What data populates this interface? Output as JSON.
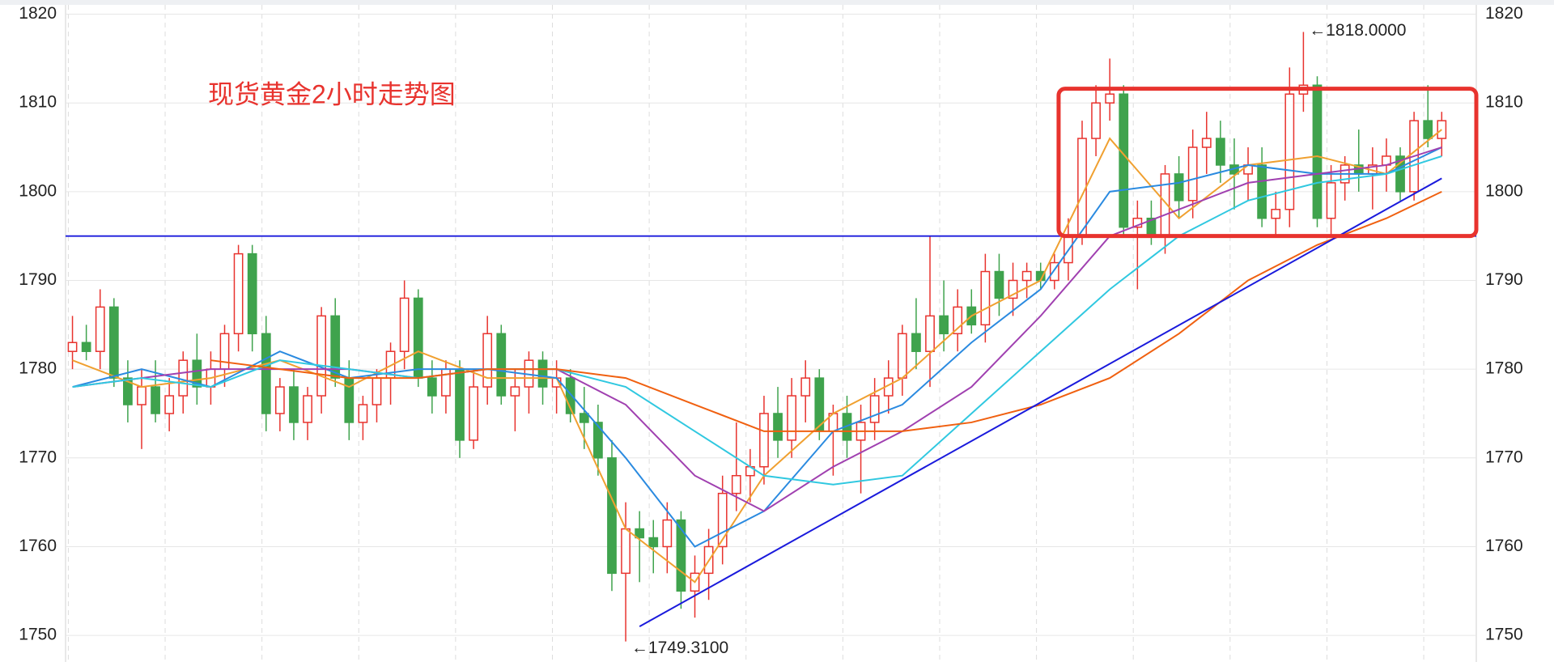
{
  "chart_data": {
    "type": "candlestick",
    "title": "现货黄金2小时走势图",
    "ylim": [
      1747,
      1821.6
    ],
    "xlim": [
      -0.5,
      101.5
    ],
    "yticks": [
      1750,
      1760,
      1770,
      1780,
      1790,
      1800,
      1810,
      1820
    ],
    "grid": true,
    "up_color": "#e8332e",
    "down_color": "#3fa34d",
    "ohlc": [
      [
        1782,
        1786,
        1780,
        1783
      ],
      [
        1783,
        1785,
        1781,
        1782
      ],
      [
        1782,
        1789,
        1780,
        1787
      ],
      [
        1787,
        1788,
        1778,
        1779
      ],
      [
        1779,
        1781,
        1774,
        1776
      ],
      [
        1776,
        1780,
        1771,
        1778
      ],
      [
        1778,
        1781,
        1774,
        1775
      ],
      [
        1775,
        1779,
        1773,
        1777
      ],
      [
        1777,
        1782,
        1775,
        1781
      ],
      [
        1781,
        1784,
        1776,
        1778
      ],
      [
        1778,
        1782,
        1776,
        1780
      ],
      [
        1780,
        1785,
        1778,
        1784
      ],
      [
        1784,
        1794,
        1782,
        1793
      ],
      [
        1793,
        1794,
        1782,
        1784
      ],
      [
        1784,
        1786,
        1773,
        1775
      ],
      [
        1775,
        1779,
        1773,
        1778
      ],
      [
        1778,
        1780,
        1772,
        1774
      ],
      [
        1774,
        1778,
        1772,
        1777
      ],
      [
        1777,
        1787,
        1775,
        1786
      ],
      [
        1786,
        1788,
        1778,
        1779
      ],
      [
        1779,
        1781,
        1772,
        1774
      ],
      [
        1774,
        1777,
        1772,
        1776
      ],
      [
        1776,
        1780,
        1774,
        1779
      ],
      [
        1779,
        1783,
        1776,
        1782
      ],
      [
        1782,
        1790,
        1780,
        1788
      ],
      [
        1788,
        1789,
        1778,
        1779
      ],
      [
        1779,
        1781,
        1775,
        1777
      ],
      [
        1777,
        1781,
        1775,
        1780
      ],
      [
        1780,
        1781,
        1770,
        1772
      ],
      [
        1772,
        1780,
        1771,
        1778
      ],
      [
        1778,
        1786,
        1776,
        1784
      ],
      [
        1784,
        1785,
        1776,
        1777
      ],
      [
        1777,
        1780,
        1773,
        1778
      ],
      [
        1778,
        1782,
        1775,
        1781
      ],
      [
        1781,
        1782,
        1776,
        1778
      ],
      [
        1778,
        1781,
        1775,
        1779
      ],
      [
        1779,
        1780,
        1774,
        1775
      ],
      [
        1775,
        1778,
        1771,
        1774
      ],
      [
        1774,
        1776,
        1768,
        1770
      ],
      [
        1770,
        1772,
        1755,
        1757
      ],
      [
        1757,
        1765,
        1749.31,
        1762
      ],
      [
        1762,
        1764,
        1756,
        1761
      ],
      [
        1761,
        1763,
        1757,
        1760
      ],
      [
        1760,
        1765,
        1757,
        1763
      ],
      [
        1763,
        1764,
        1753,
        1755
      ],
      [
        1755,
        1759,
        1752,
        1757
      ],
      [
        1757,
        1762,
        1754,
        1760
      ],
      [
        1760,
        1768,
        1758,
        1766
      ],
      [
        1766,
        1774,
        1764,
        1768
      ],
      [
        1768,
        1771,
        1765,
        1769
      ],
      [
        1769,
        1777,
        1767,
        1775
      ],
      [
        1775,
        1778,
        1770,
        1772
      ],
      [
        1772,
        1779,
        1770,
        1777
      ],
      [
        1777,
        1781,
        1774,
        1779
      ],
      [
        1779,
        1780,
        1772,
        1773
      ],
      [
        1773,
        1776,
        1768,
        1775
      ],
      [
        1775,
        1777,
        1770,
        1772
      ],
      [
        1772,
        1776,
        1766,
        1774
      ],
      [
        1774,
        1779,
        1772,
        1777
      ],
      [
        1777,
        1781,
        1775,
        1779
      ],
      [
        1779,
        1785,
        1777,
        1784
      ],
      [
        1784,
        1788,
        1780,
        1782
      ],
      [
        1782,
        1795,
        1778,
        1786
      ],
      [
        1786,
        1790,
        1782,
        1784
      ],
      [
        1784,
        1789,
        1782,
        1787
      ],
      [
        1787,
        1789,
        1784,
        1785
      ],
      [
        1785,
        1793,
        1783,
        1791
      ],
      [
        1791,
        1793,
        1786,
        1788
      ],
      [
        1788,
        1792,
        1786,
        1790
      ],
      [
        1790,
        1792,
        1788,
        1791
      ],
      [
        1791,
        1792,
        1789,
        1790
      ],
      [
        1790,
        1793,
        1789,
        1792
      ],
      [
        1792,
        1797,
        1790,
        1795
      ],
      [
        1795,
        1808,
        1794,
        1806
      ],
      [
        1806,
        1812,
        1804,
        1810
      ],
      [
        1810,
        1815,
        1808,
        1811
      ],
      [
        1811,
        1812,
        1795,
        1796
      ],
      [
        1796,
        1799,
        1789,
        1797
      ],
      [
        1797,
        1799,
        1794,
        1795
      ],
      [
        1795,
        1803,
        1793,
        1802
      ],
      [
        1802,
        1804,
        1797,
        1799
      ],
      [
        1799,
        1807,
        1797,
        1805
      ],
      [
        1805,
        1809,
        1802,
        1806
      ],
      [
        1806,
        1808,
        1801,
        1803
      ],
      [
        1803,
        1806,
        1798,
        1802
      ],
      [
        1802,
        1805,
        1799,
        1803
      ],
      [
        1803,
        1805,
        1796,
        1797
      ],
      [
        1797,
        1800,
        1795,
        1798
      ],
      [
        1798,
        1814,
        1796,
        1811
      ],
      [
        1811,
        1818,
        1809,
        1812
      ],
      [
        1812,
        1813,
        1796,
        1797
      ],
      [
        1797,
        1803,
        1795,
        1801
      ],
      [
        1801,
        1804,
        1799,
        1803
      ],
      [
        1803,
        1807,
        1800,
        1802
      ],
      [
        1802,
        1805,
        1798,
        1803
      ],
      [
        1803,
        1806,
        1800,
        1804
      ],
      [
        1804,
        1805,
        1799,
        1800
      ],
      [
        1800,
        1809,
        1799,
        1808
      ],
      [
        1808,
        1812,
        1805,
        1806
      ],
      [
        1806,
        1809,
        1804,
        1808
      ]
    ],
    "series": [
      {
        "color": "#f0a030",
        "x": [
          0,
          5,
          10,
          15,
          20,
          25,
          30,
          35,
          40,
          45,
          50,
          55,
          60,
          65,
          70,
          75,
          80,
          85,
          90,
          95,
          99
        ],
        "values": [
          1781,
          1778,
          1779,
          1781,
          1778,
          1782,
          1779,
          1779,
          1762,
          1756,
          1768,
          1775,
          1779,
          1786,
          1790,
          1806,
          1797,
          1803,
          1804,
          1802,
          1807
        ]
      },
      {
        "color": "#2a8ae0",
        "x": [
          0,
          5,
          10,
          15,
          20,
          25,
          30,
          35,
          40,
          45,
          50,
          55,
          60,
          65,
          70,
          75,
          80,
          85,
          90,
          95,
          99
        ],
        "values": [
          1778,
          1780,
          1778,
          1782,
          1779,
          1780,
          1780,
          1779,
          1770,
          1760,
          1764,
          1773,
          1776,
          1783,
          1789,
          1800,
          1801,
          1803,
          1802,
          1802,
          1805
        ]
      },
      {
        "color": "#a040b0",
        "x": [
          0,
          5,
          10,
          15,
          20,
          25,
          30,
          35,
          40,
          45,
          50,
          55,
          60,
          65,
          70,
          75,
          80,
          85,
          90,
          95,
          99
        ],
        "values": [
          1778,
          1779,
          1780,
          1780,
          1780,
          1779,
          1780,
          1780,
          1776,
          1768,
          1764,
          1769,
          1773,
          1778,
          1786,
          1795,
          1798,
          1801,
          1802,
          1803,
          1805
        ]
      },
      {
        "color": "#30c8e0",
        "x": [
          0,
          5,
          10,
          15,
          20,
          25,
          30,
          35,
          40,
          45,
          50,
          55,
          60,
          65,
          70,
          75,
          80,
          85,
          90,
          95,
          99
        ],
        "values": [
          1778,
          1779,
          1778,
          1781,
          1780,
          1779,
          1780,
          1780,
          1778,
          1773,
          1768,
          1767,
          1768,
          1775,
          1782,
          1789,
          1795,
          1799,
          1801,
          1802,
          1804
        ]
      },
      {
        "color": "#f06010",
        "x": [
          0,
          5,
          10,
          15,
          20,
          25,
          30,
          35,
          40,
          45,
          50,
          55,
          60,
          65,
          70,
          75,
          80,
          85,
          90,
          95,
          99
        ],
        "values": [
          null,
          null,
          1781,
          1780,
          1779,
          1779,
          1780,
          1780,
          1779,
          1776,
          1773,
          1773,
          1773,
          1774,
          1776,
          1779,
          1784,
          1790,
          1794,
          1797,
          1800
        ]
      }
    ],
    "support": {
      "value": 1795,
      "color": "#1a1adc"
    },
    "trendline": {
      "x": [
        41,
        99
      ],
      "y": [
        1751,
        1801.5
      ],
      "color": "#1a1adc"
    },
    "highlight_box": {
      "x": [
        71.3,
        101.5
      ],
      "y": [
        1795,
        1811.6
      ],
      "color": "#e8332e"
    },
    "annotations": [
      {
        "x": 89,
        "value": 1818,
        "label": "←1818.0000"
      },
      {
        "x": 40,
        "value": 1749.31,
        "label": "←1749.3100"
      }
    ]
  }
}
